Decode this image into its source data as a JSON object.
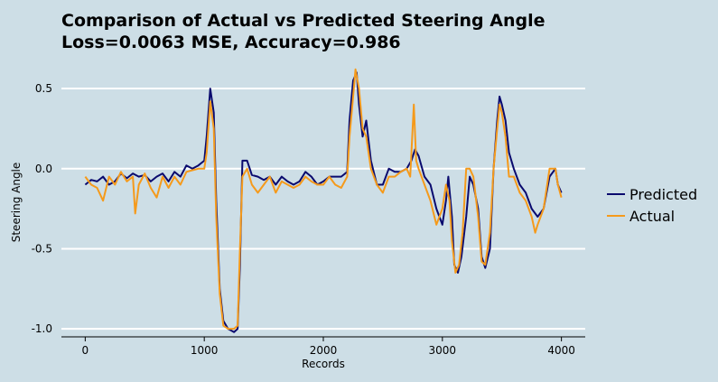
{
  "title_line1": "Comparison of Actual vs Predicted Steering Angle",
  "title_line2": "Loss=0.0063 MSE, Accuracy=0.986",
  "colors": {
    "background": "#cddee6",
    "predicted": "#0a0a6e",
    "actual": "#f59a1b",
    "grid": "#ffffff"
  },
  "chart_data": {
    "type": "line",
    "title": "Comparison of Actual vs Predicted Steering Angle\nLoss=0.0063 MSE, Accuracy=0.986",
    "xlabel": "Records",
    "ylabel": "Steering Angle",
    "xlim": [
      -200,
      4200
    ],
    "ylim": [
      -1.05,
      0.63
    ],
    "xticks": [
      0,
      1000,
      2000,
      3000,
      4000
    ],
    "xtick_labels": [
      "0",
      "1000",
      "2000",
      "3000",
      "4000"
    ],
    "yticks": [
      0.5,
      0.0,
      -0.5,
      -1.0
    ],
    "ytick_labels": [
      "0.5",
      "0.0",
      "-0.5",
      "-1.0"
    ],
    "grid": "horizontal",
    "legend_position": "right",
    "series": [
      {
        "name": "Predicted",
        "color": "#0a0a6e",
        "points": [
          [
            0,
            -0.1
          ],
          [
            50,
            -0.07
          ],
          [
            100,
            -0.08
          ],
          [
            150,
            -0.05
          ],
          [
            200,
            -0.1
          ],
          [
            250,
            -0.08
          ],
          [
            300,
            -0.03
          ],
          [
            350,
            -0.06
          ],
          [
            400,
            -0.03
          ],
          [
            450,
            -0.05
          ],
          [
            500,
            -0.04
          ],
          [
            550,
            -0.08
          ],
          [
            600,
            -0.05
          ],
          [
            650,
            -0.03
          ],
          [
            700,
            -0.08
          ],
          [
            750,
            -0.02
          ],
          [
            800,
            -0.05
          ],
          [
            850,
            0.02
          ],
          [
            900,
            0.0
          ],
          [
            950,
            0.02
          ],
          [
            1000,
            0.05
          ],
          [
            1020,
            0.2
          ],
          [
            1050,
            0.5
          ],
          [
            1080,
            0.35
          ],
          [
            1100,
            -0.2
          ],
          [
            1130,
            -0.75
          ],
          [
            1160,
            -0.95
          ],
          [
            1200,
            -1.0
          ],
          [
            1250,
            -1.02
          ],
          [
            1280,
            -1.0
          ],
          [
            1300,
            -0.6
          ],
          [
            1320,
            0.05
          ],
          [
            1360,
            0.05
          ],
          [
            1400,
            -0.04
          ],
          [
            1450,
            -0.05
          ],
          [
            1500,
            -0.07
          ],
          [
            1550,
            -0.05
          ],
          [
            1600,
            -0.1
          ],
          [
            1650,
            -0.05
          ],
          [
            1700,
            -0.08
          ],
          [
            1750,
            -0.1
          ],
          [
            1800,
            -0.08
          ],
          [
            1850,
            -0.02
          ],
          [
            1900,
            -0.05
          ],
          [
            1950,
            -0.1
          ],
          [
            2000,
            -0.08
          ],
          [
            2050,
            -0.05
          ],
          [
            2100,
            -0.05
          ],
          [
            2150,
            -0.05
          ],
          [
            2200,
            -0.02
          ],
          [
            2220,
            0.3
          ],
          [
            2250,
            0.55
          ],
          [
            2280,
            0.6
          ],
          [
            2300,
            0.4
          ],
          [
            2330,
            0.2
          ],
          [
            2360,
            0.3
          ],
          [
            2400,
            0.05
          ],
          [
            2450,
            -0.1
          ],
          [
            2500,
            -0.1
          ],
          [
            2550,
            0.0
          ],
          [
            2600,
            -0.02
          ],
          [
            2650,
            -0.02
          ],
          [
            2700,
            0.0
          ],
          [
            2740,
            0.05
          ],
          [
            2770,
            0.12
          ],
          [
            2800,
            0.08
          ],
          [
            2850,
            -0.05
          ],
          [
            2900,
            -0.1
          ],
          [
            2950,
            -0.25
          ],
          [
            3000,
            -0.35
          ],
          [
            3030,
            -0.2
          ],
          [
            3050,
            -0.05
          ],
          [
            3080,
            -0.3
          ],
          [
            3100,
            -0.6
          ],
          [
            3130,
            -0.65
          ],
          [
            3160,
            -0.55
          ],
          [
            3200,
            -0.3
          ],
          [
            3230,
            -0.05
          ],
          [
            3260,
            -0.1
          ],
          [
            3300,
            -0.25
          ],
          [
            3330,
            -0.55
          ],
          [
            3360,
            -0.62
          ],
          [
            3400,
            -0.5
          ],
          [
            3430,
            0.0
          ],
          [
            3460,
            0.3
          ],
          [
            3480,
            0.45
          ],
          [
            3500,
            0.4
          ],
          [
            3530,
            0.3
          ],
          [
            3560,
            0.1
          ],
          [
            3600,
            0.0
          ],
          [
            3650,
            -0.1
          ],
          [
            3700,
            -0.15
          ],
          [
            3750,
            -0.25
          ],
          [
            3800,
            -0.3
          ],
          [
            3850,
            -0.25
          ],
          [
            3900,
            -0.05
          ],
          [
            3950,
            0.0
          ],
          [
            3970,
            -0.1
          ],
          [
            4000,
            -0.15
          ]
        ]
      },
      {
        "name": "Actual",
        "color": "#f59a1b",
        "points": [
          [
            0,
            -0.05
          ],
          [
            50,
            -0.1
          ],
          [
            100,
            -0.12
          ],
          [
            150,
            -0.2
          ],
          [
            200,
            -0.05
          ],
          [
            250,
            -0.1
          ],
          [
            300,
            -0.02
          ],
          [
            350,
            -0.08
          ],
          [
            400,
            -0.05
          ],
          [
            420,
            -0.28
          ],
          [
            450,
            -0.1
          ],
          [
            500,
            -0.03
          ],
          [
            550,
            -0.12
          ],
          [
            600,
            -0.18
          ],
          [
            650,
            -0.05
          ],
          [
            700,
            -0.12
          ],
          [
            750,
            -0.05
          ],
          [
            800,
            -0.1
          ],
          [
            850,
            -0.02
          ],
          [
            900,
            -0.01
          ],
          [
            950,
            0.0
          ],
          [
            1000,
            0.0
          ],
          [
            1020,
            0.1
          ],
          [
            1050,
            0.42
          ],
          [
            1080,
            0.25
          ],
          [
            1100,
            -0.3
          ],
          [
            1130,
            -0.78
          ],
          [
            1160,
            -0.98
          ],
          [
            1200,
            -1.0
          ],
          [
            1250,
            -1.0
          ],
          [
            1280,
            -0.98
          ],
          [
            1300,
            -0.5
          ],
          [
            1320,
            -0.05
          ],
          [
            1360,
            0.0
          ],
          [
            1400,
            -0.1
          ],
          [
            1450,
            -0.15
          ],
          [
            1500,
            -0.1
          ],
          [
            1550,
            -0.05
          ],
          [
            1600,
            -0.15
          ],
          [
            1650,
            -0.08
          ],
          [
            1700,
            -0.1
          ],
          [
            1750,
            -0.12
          ],
          [
            1800,
            -0.1
          ],
          [
            1850,
            -0.05
          ],
          [
            1900,
            -0.08
          ],
          [
            1950,
            -0.1
          ],
          [
            2000,
            -0.1
          ],
          [
            2050,
            -0.05
          ],
          [
            2100,
            -0.1
          ],
          [
            2150,
            -0.12
          ],
          [
            2200,
            -0.05
          ],
          [
            2220,
            0.2
          ],
          [
            2250,
            0.45
          ],
          [
            2270,
            0.62
          ],
          [
            2300,
            0.5
          ],
          [
            2330,
            0.25
          ],
          [
            2360,
            0.2
          ],
          [
            2400,
            0.0
          ],
          [
            2450,
            -0.1
          ],
          [
            2500,
            -0.15
          ],
          [
            2550,
            -0.05
          ],
          [
            2600,
            -0.05
          ],
          [
            2650,
            -0.02
          ],
          [
            2700,
            0.0
          ],
          [
            2730,
            -0.05
          ],
          [
            2760,
            0.4
          ],
          [
            2780,
            0.05
          ],
          [
            2800,
            0.0
          ],
          [
            2850,
            -0.1
          ],
          [
            2900,
            -0.2
          ],
          [
            2950,
            -0.35
          ],
          [
            3000,
            -0.25
          ],
          [
            3030,
            -0.1
          ],
          [
            3060,
            -0.2
          ],
          [
            3080,
            -0.45
          ],
          [
            3110,
            -0.65
          ],
          [
            3140,
            -0.6
          ],
          [
            3170,
            -0.4
          ],
          [
            3200,
            0.0
          ],
          [
            3230,
            0.0
          ],
          [
            3260,
            -0.05
          ],
          [
            3300,
            -0.3
          ],
          [
            3330,
            -0.58
          ],
          [
            3360,
            -0.6
          ],
          [
            3400,
            -0.4
          ],
          [
            3430,
            0.0
          ],
          [
            3460,
            0.25
          ],
          [
            3480,
            0.4
          ],
          [
            3500,
            0.35
          ],
          [
            3530,
            0.2
          ],
          [
            3560,
            -0.05
          ],
          [
            3600,
            -0.05
          ],
          [
            3650,
            -0.15
          ],
          [
            3700,
            -0.2
          ],
          [
            3750,
            -0.3
          ],
          [
            3780,
            -0.4
          ],
          [
            3800,
            -0.35
          ],
          [
            3850,
            -0.25
          ],
          [
            3900,
            0.0
          ],
          [
            3950,
            0.0
          ],
          [
            3970,
            -0.1
          ],
          [
            4000,
            -0.18
          ]
        ]
      }
    ]
  }
}
